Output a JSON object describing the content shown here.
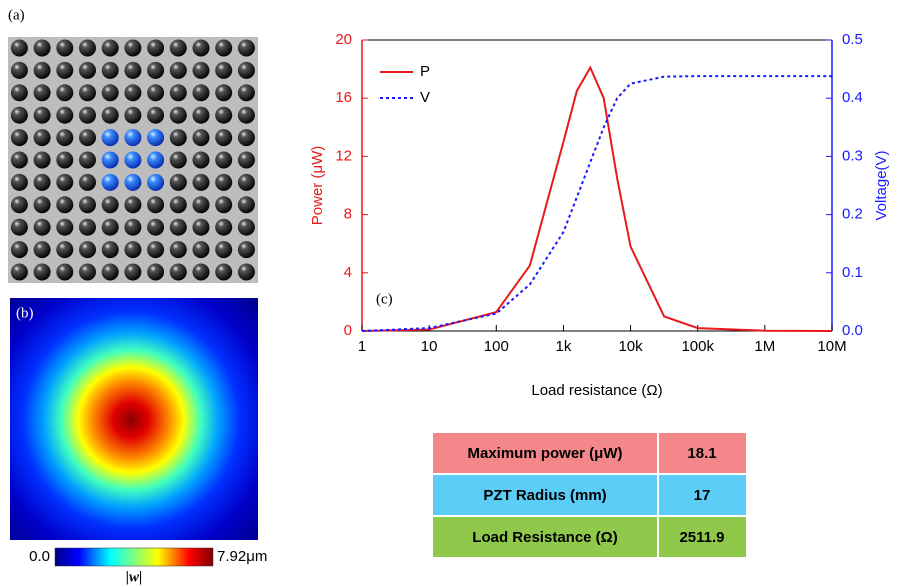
{
  "panel_a": {
    "label": "(a)"
  },
  "panel_b": {
    "label": "(b)",
    "colorbar": {
      "min_label": "0.0",
      "max_label": "7.92μm",
      "title": "|w|"
    }
  },
  "chart_data": {
    "type": "line",
    "annotation": "(c)",
    "x_label": "Load resistance (Ω)",
    "y_label": "Power (μW)",
    "y2_label": "Voltage(V)",
    "log_x": true,
    "x": [
      1,
      10,
      100,
      316,
      1000,
      1585,
      2512,
      3981,
      6310,
      10000,
      31623,
      100000,
      1000000,
      10000000
    ],
    "series": [
      {
        "name": "P",
        "color": "#e8191c",
        "style": "solid",
        "axis": "y",
        "values": [
          0,
          0.1,
          1.3,
          4.5,
          13,
          16.5,
          18.1,
          16,
          10.5,
          5.8,
          1.0,
          0.2,
          0.02,
          0
        ]
      },
      {
        "name": "V",
        "color": "#1a1aff",
        "style": "dotted",
        "axis": "y2",
        "values": [
          0,
          0.005,
          0.03,
          0.08,
          0.17,
          0.23,
          0.29,
          0.35,
          0.4,
          0.425,
          0.437,
          0.438,
          0.438,
          0.438
        ]
      }
    ],
    "xlim": [
      1,
      10000000
    ],
    "xticks": [
      1,
      10,
      100,
      {
        "value": 1000,
        "label": "1k"
      },
      {
        "value": 10000,
        "label": "10k"
      },
      {
        "value": 100000,
        "label": "100k"
      },
      {
        "value": 1000000,
        "label": "1M"
      },
      {
        "value": 10000000,
        "label": "10M"
      }
    ],
    "ylim": [
      0,
      20
    ],
    "yticks": [
      0,
      4,
      8,
      12,
      16,
      20
    ],
    "y2lim": [
      0,
      0.5
    ],
    "y2ticks": [
      {
        "value": 0,
        "label": "0.0"
      },
      0.1,
      0.2,
      0.3,
      0.4,
      0.5
    ],
    "legend": "upper-left"
  },
  "table": {
    "rows": [
      [
        "Maximum power (μW)",
        "18.1"
      ],
      [
        "PZT Radius (mm)",
        "17"
      ],
      [
        "Load Resistance (Ω)",
        "2511.9"
      ]
    ]
  }
}
